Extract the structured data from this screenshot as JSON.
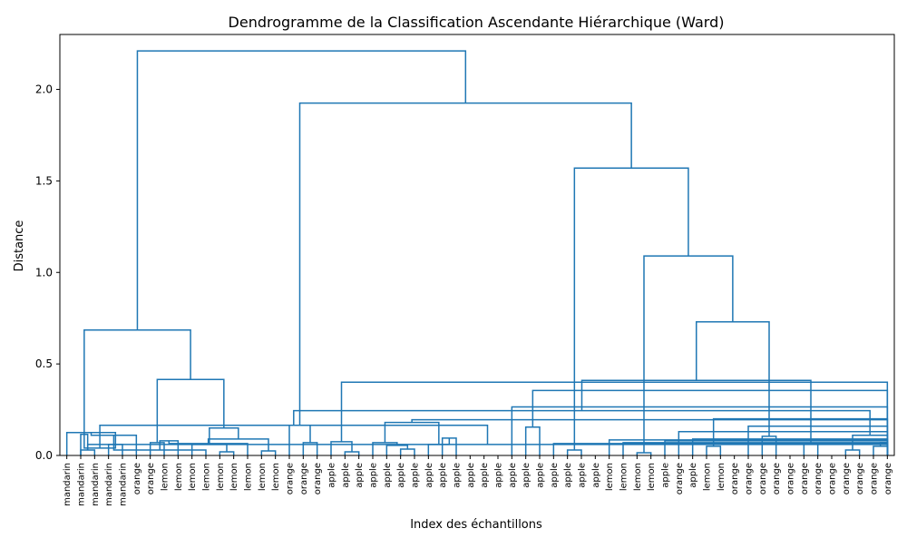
{
  "chart_data": {
    "type": "dendrogram",
    "title": "Dendrogramme de la Classification Ascendante Hiérarchique (Ward)",
    "xlabel": "Index des échantillons",
    "ylabel": "Distance",
    "ylim": [
      0,
      2.3
    ],
    "yticks": [
      0.0,
      0.5,
      1.0,
      1.5,
      2.0
    ],
    "ytick_labels": [
      "0.0",
      "0.5",
      "1.0",
      "1.5",
      "2.0"
    ],
    "link_color": "#1f77b4",
    "leaves": [
      "mandarin",
      "mandarin",
      "mandarin",
      "mandarin",
      "mandarin",
      "orange",
      "orange",
      "lemon",
      "lemon",
      "lemon",
      "lemon",
      "lemon",
      "lemon",
      "lemon",
      "lemon",
      "lemon",
      "orange",
      "orange",
      "orange",
      "apple",
      "apple",
      "apple",
      "apple",
      "apple",
      "apple",
      "apple",
      "apple",
      "apple",
      "apple",
      "apple",
      "apple",
      "apple",
      "apple",
      "apple",
      "apple",
      "apple",
      "apple",
      "apple",
      "apple",
      "lemon",
      "lemon",
      "lemon",
      "lemon",
      "apple",
      "orange",
      "apple",
      "lemon",
      "lemon",
      "orange",
      "orange",
      "orange",
      "orange",
      "orange",
      "orange",
      "orange",
      "orange",
      "orange",
      "orange",
      "orange",
      "orange"
    ],
    "merges": [
      [
        1,
        2,
        0.03
      ],
      [
        3,
        4,
        0.06
      ],
      [
        -2,
        60,
        0.115
      ],
      [
        0,
        61,
        0.125
      ],
      [
        6,
        7,
        0.07
      ],
      [
        5,
        63,
        0.11
      ],
      [
        11,
        12,
        0.02
      ],
      [
        10,
        65,
        0.03
      ],
      [
        9,
        66,
        0.06
      ],
      [
        8,
        67,
        0.08
      ],
      [
        14,
        15,
        0.025
      ],
      [
        13,
        69,
        0.065
      ],
      [
        70,
        71,
        0.09
      ],
      [
        68,
        72,
        0.15
      ],
      [
        64,
        73,
        0.415
      ],
      [
        62,
        74,
        0.685
      ],
      [
        17,
        18,
        0.07
      ],
      [
        16,
        76,
        0.165
      ],
      [
        20,
        21,
        0.02
      ],
      [
        19,
        78,
        0.075
      ],
      [
        24,
        25,
        0.035
      ],
      [
        23,
        80,
        0.055
      ],
      [
        22,
        81,
        0.07
      ],
      [
        27,
        28,
        0.095
      ],
      [
        26,
        83,
        0.06
      ],
      [
        82,
        84,
        0.18
      ],
      [
        85,
        86,
        0.195
      ],
      [
        79,
        87,
        0.4
      ],
      [
        36,
        37,
        0.03
      ],
      [
        35,
        89,
        0.065
      ],
      [
        33,
        34,
        0.155
      ],
      [
        32,
        91,
        0.265
      ],
      [
        41,
        42,
        0.015
      ],
      [
        40,
        93,
        0.07
      ],
      [
        39,
        94,
        0.085
      ],
      [
        46,
        47,
        0.05
      ],
      [
        45,
        96,
        0.09
      ],
      [
        44,
        97,
        0.13
      ],
      [
        43,
        98,
        0.08
      ],
      [
        95,
        99,
        0.2
      ],
      [
        90,
        100,
        0.355
      ],
      [
        50,
        51,
        0.105
      ],
      [
        49,
        102,
        0.16
      ],
      [
        53,
        54,
        0.065
      ],
      [
        56,
        57,
        0.03
      ],
      [
        58,
        59,
        0.05
      ],
      [
        105,
        106,
        0.07
      ],
      [
        104,
        107,
        0.11
      ],
      [
        59,
        60,
        0.06
      ],
      [
        61,
        62,
        0.04
      ],
      [
        108,
        109,
        0.165
      ],
      [
        107,
        110,
        0.245
      ],
      [
        103,
        111,
        0.41
      ],
      [
        101,
        112,
        0.73
      ],
      [
        92,
        113,
        1.09
      ],
      [
        88,
        114,
        1.57
      ],
      [
        77,
        115,
        1.925
      ],
      [
        75,
        116,
        2.21
      ]
    ]
  }
}
